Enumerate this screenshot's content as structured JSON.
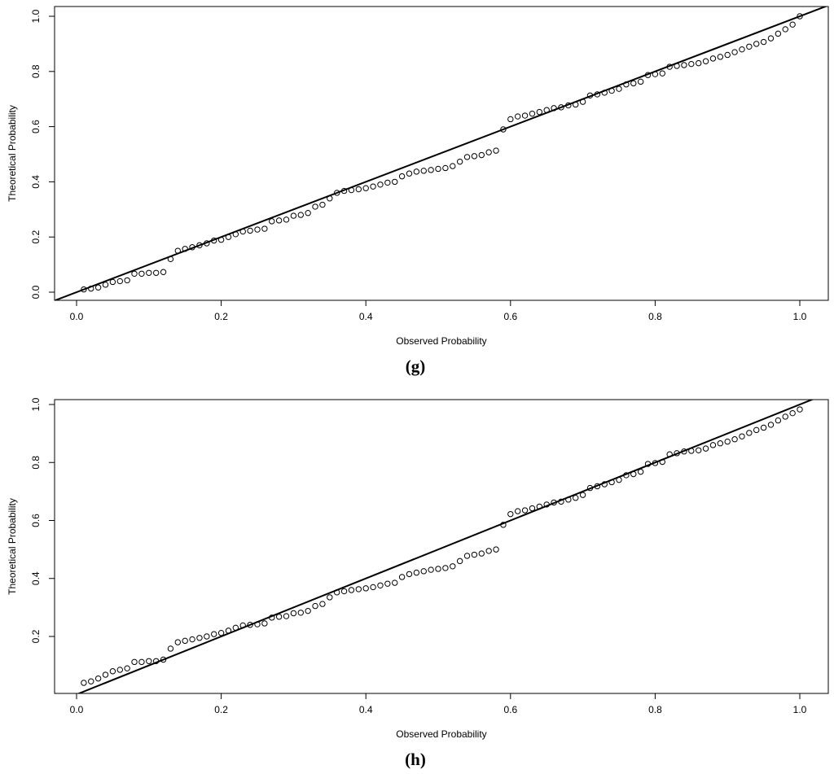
{
  "chart_data": [
    {
      "type": "scatter",
      "caption": "(g)",
      "xlabel": "Observed Probability",
      "ylabel": "Theoretical Probability",
      "xlim": [
        -0.0304,
        1.0394
      ],
      "ylim": [
        -0.0295,
        1.0354
      ],
      "xticks": [
        {
          "value": 0,
          "label": "0.0"
        },
        0.2,
        0.4,
        0.6,
        0.8,
        {
          "value": 1,
          "label": "1.0"
        }
      ],
      "yticks": [
        {
          "value": 0,
          "label": "0.0"
        },
        0.2,
        0.4,
        0.6,
        0.8,
        {
          "value": 1,
          "label": "1.0"
        }
      ],
      "reference_line": {
        "slope": 1,
        "intercept": 0
      },
      "color": "#000000",
      "x": [
        0.01,
        0.02,
        0.03,
        0.04,
        0.05,
        0.06,
        0.07,
        0.08,
        0.09,
        0.1,
        0.11,
        0.12,
        0.13,
        0.14,
        0.15,
        0.16,
        0.17,
        0.18,
        0.19,
        0.2,
        0.21,
        0.22,
        0.23,
        0.24,
        0.25,
        0.26,
        0.27,
        0.28,
        0.29,
        0.3,
        0.31,
        0.32,
        0.33,
        0.34,
        0.35,
        0.36,
        0.37,
        0.38,
        0.39,
        0.4,
        0.41,
        0.42,
        0.43,
        0.44,
        0.45,
        0.46,
        0.47,
        0.48,
        0.49,
        0.5,
        0.51,
        0.52,
        0.53,
        0.54,
        0.55,
        0.56,
        0.57,
        0.58,
        0.59,
        0.6,
        0.61,
        0.62,
        0.63,
        0.64,
        0.65,
        0.66,
        0.67,
        0.68,
        0.69,
        0.7,
        0.71,
        0.72,
        0.73,
        0.74,
        0.75,
        0.76,
        0.77,
        0.78,
        0.79,
        0.8,
        0.81,
        0.82,
        0.83,
        0.84,
        0.85,
        0.86,
        0.87,
        0.88,
        0.89,
        0.9,
        0.91,
        0.92,
        0.93,
        0.94,
        0.95,
        0.96,
        0.97,
        0.98,
        0.99,
        1
      ],
      "values": [
        0.01,
        0.013,
        0.017,
        0.027,
        0.037,
        0.04,
        0.043,
        0.067,
        0.067,
        0.07,
        0.07,
        0.073,
        0.12,
        0.15,
        0.157,
        0.163,
        0.17,
        0.177,
        0.187,
        0.19,
        0.2,
        0.21,
        0.22,
        0.223,
        0.227,
        0.23,
        0.257,
        0.26,
        0.263,
        0.277,
        0.28,
        0.287,
        0.31,
        0.317,
        0.34,
        0.36,
        0.367,
        0.37,
        0.373,
        0.377,
        0.383,
        0.39,
        0.397,
        0.4,
        0.42,
        0.43,
        0.437,
        0.44,
        0.443,
        0.447,
        0.45,
        0.457,
        0.473,
        0.49,
        0.493,
        0.497,
        0.507,
        0.513,
        0.59,
        0.627,
        0.637,
        0.64,
        0.647,
        0.653,
        0.66,
        0.667,
        0.67,
        0.677,
        0.68,
        0.69,
        0.713,
        0.717,
        0.723,
        0.73,
        0.737,
        0.753,
        0.757,
        0.763,
        0.787,
        0.79,
        0.793,
        0.817,
        0.82,
        0.823,
        0.827,
        0.83,
        0.837,
        0.847,
        0.853,
        0.86,
        0.87,
        0.88,
        0.89,
        0.9,
        0.907,
        0.92,
        0.937,
        0.953,
        0.97,
        1.0
      ]
    },
    {
      "type": "scatter",
      "caption": "(h)",
      "xlabel": "Observed Probability",
      "ylabel": "Theoretical Probability",
      "xlim": [
        -0.0304,
        1.0394
      ],
      "ylim": [
        0.0035,
        1.0168
      ],
      "xticks": [
        {
          "value": 0,
          "label": "0.0"
        },
        0.2,
        0.4,
        0.6,
        0.8,
        {
          "value": 1,
          "label": "1.0"
        }
      ],
      "yticks": [
        0.2,
        0.4,
        0.6,
        0.8,
        {
          "value": 1,
          "label": "1.0"
        }
      ],
      "reference_line": {
        "slope": 1,
        "intercept": 0
      },
      "color": "#000000",
      "x": [
        0.01,
        0.02,
        0.03,
        0.04,
        0.05,
        0.06,
        0.07,
        0.08,
        0.09,
        0.1,
        0.11,
        0.12,
        0.13,
        0.14,
        0.15,
        0.16,
        0.17,
        0.18,
        0.19,
        0.2,
        0.21,
        0.22,
        0.23,
        0.24,
        0.25,
        0.26,
        0.27,
        0.28,
        0.29,
        0.3,
        0.31,
        0.32,
        0.33,
        0.34,
        0.35,
        0.36,
        0.37,
        0.38,
        0.39,
        0.4,
        0.41,
        0.42,
        0.43,
        0.44,
        0.45,
        0.46,
        0.47,
        0.48,
        0.49,
        0.5,
        0.51,
        0.52,
        0.53,
        0.54,
        0.55,
        0.56,
        0.57,
        0.58,
        0.59,
        0.6,
        0.61,
        0.62,
        0.63,
        0.64,
        0.65,
        0.66,
        0.67,
        0.68,
        0.69,
        0.7,
        0.71,
        0.72,
        0.73,
        0.74,
        0.75,
        0.76,
        0.77,
        0.78,
        0.79,
        0.8,
        0.81,
        0.82,
        0.83,
        0.84,
        0.85,
        0.86,
        0.87,
        0.88,
        0.89,
        0.9,
        0.91,
        0.92,
        0.93,
        0.94,
        0.95,
        0.96,
        0.97,
        0.98,
        0.99,
        1
      ],
      "values": [
        0.04,
        0.045,
        0.055,
        0.068,
        0.08,
        0.085,
        0.09,
        0.112,
        0.112,
        0.115,
        0.115,
        0.12,
        0.158,
        0.18,
        0.185,
        0.19,
        0.195,
        0.2,
        0.208,
        0.212,
        0.22,
        0.23,
        0.238,
        0.24,
        0.242,
        0.245,
        0.265,
        0.268,
        0.27,
        0.28,
        0.282,
        0.288,
        0.305,
        0.312,
        0.335,
        0.352,
        0.356,
        0.36,
        0.363,
        0.366,
        0.37,
        0.376,
        0.382,
        0.385,
        0.405,
        0.415,
        0.42,
        0.425,
        0.43,
        0.433,
        0.436,
        0.442,
        0.46,
        0.478,
        0.482,
        0.486,
        0.495,
        0.5,
        0.585,
        0.622,
        0.632,
        0.635,
        0.642,
        0.648,
        0.655,
        0.662,
        0.665,
        0.672,
        0.678,
        0.688,
        0.712,
        0.718,
        0.725,
        0.732,
        0.74,
        0.756,
        0.76,
        0.768,
        0.795,
        0.798,
        0.802,
        0.828,
        0.832,
        0.838,
        0.84,
        0.842,
        0.848,
        0.86,
        0.866,
        0.872,
        0.88,
        0.89,
        0.902,
        0.912,
        0.92,
        0.93,
        0.945,
        0.958,
        0.97,
        0.983
      ]
    }
  ]
}
